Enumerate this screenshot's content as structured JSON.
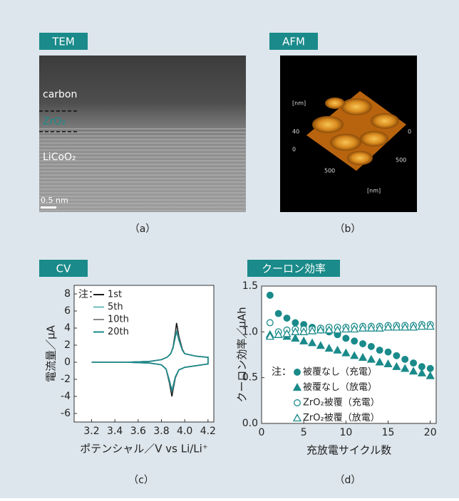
{
  "panels": [
    {
      "tab": "TEM",
      "caption": "（a）",
      "labels": [
        "carbon",
        "ZrO₂",
        "LiCoO₂"
      ],
      "scale_label": "0.5 nm"
    },
    {
      "tab": "AFM",
      "caption": "（b）",
      "axis_labels": [
        "[nm]",
        "40",
        "0",
        "500",
        "0",
        "500",
        "[nm]"
      ]
    }
  ],
  "chart_data": [
    {
      "type": "line",
      "tab": "CV",
      "caption": "（c）",
      "x_label": "ポテンシャル／V vs Li/Li⁺",
      "y_label": "電流量／μA",
      "legend_note": "注：",
      "xlim": [
        3.05,
        4.25
      ],
      "ylim": [
        -7,
        9
      ],
      "xticks": [
        3.2,
        3.4,
        3.6,
        3.8,
        {
          "value": 4,
          "label": "4.0"
        },
        4.2
      ],
      "yticks": [
        -6,
        -4,
        -2,
        0,
        2,
        4,
        6,
        8
      ],
      "series": [
        {
          "name": "1st",
          "color": "#1a1a1a",
          "x": [
            3.2,
            3.5,
            3.7,
            3.8,
            3.85,
            3.88,
            3.9,
            3.92,
            3.93,
            3.95,
            3.98,
            4.0,
            4.1,
            4.18,
            4.2,
            4.2,
            4.1,
            4.0,
            3.95,
            3.92,
            3.9,
            3.89,
            3.87,
            3.84,
            3.8,
            3.7,
            3.5,
            3.2
          ],
          "values": [
            0,
            0,
            0.1,
            0.3,
            0.6,
            1.0,
            1.8,
            3.5,
            4.6,
            3,
            1.5,
            1,
            0.7,
            0.6,
            0.6,
            -0.2,
            -0.4,
            -0.6,
            -0.9,
            -1.8,
            -3.2,
            -4.0,
            -2.5,
            -0.8,
            -0.3,
            -0.1,
            0,
            0
          ]
        },
        {
          "name": "5th",
          "color": "#6cbcbc",
          "x": [
            3.2,
            3.5,
            3.7,
            3.8,
            3.85,
            3.88,
            3.9,
            3.92,
            3.93,
            3.95,
            3.98,
            4.0,
            4.1,
            4.18,
            4.2,
            4.2,
            4.1,
            4.0,
            3.95,
            3.92,
            3.9,
            3.89,
            3.87,
            3.84,
            3.8,
            3.7,
            3.5,
            3.2
          ],
          "values": [
            0,
            0,
            0.1,
            0.3,
            0.6,
            1.0,
            1.7,
            3.1,
            3.8,
            2.7,
            1.4,
            1,
            0.7,
            0.6,
            0.6,
            -0.2,
            -0.4,
            -0.6,
            -0.9,
            -1.7,
            -2.9,
            -3.4,
            -2.3,
            -0.8,
            -0.3,
            -0.1,
            0,
            0
          ]
        },
        {
          "name": "10th",
          "color": "#8a8a8a",
          "x": [
            3.2,
            3.5,
            3.7,
            3.8,
            3.85,
            3.88,
            3.9,
            3.92,
            3.93,
            3.95,
            3.98,
            4.0,
            4.1,
            4.18,
            4.2,
            4.2,
            4.1,
            4.0,
            3.95,
            3.92,
            3.9,
            3.89,
            3.87,
            3.84,
            3.8,
            3.7,
            3.5,
            3.2
          ],
          "values": [
            0,
            0,
            0.1,
            0.3,
            0.6,
            1.0,
            1.7,
            3.0,
            3.7,
            2.6,
            1.4,
            1,
            0.7,
            0.6,
            0.6,
            -0.2,
            -0.4,
            -0.6,
            -0.9,
            -1.7,
            -2.8,
            -3.3,
            -2.2,
            -0.8,
            -0.3,
            -0.1,
            0,
            0
          ]
        },
        {
          "name": "20th",
          "color": "#1a8a8a",
          "x": [
            3.2,
            3.5,
            3.7,
            3.8,
            3.85,
            3.88,
            3.9,
            3.92,
            3.93,
            3.95,
            3.98,
            4.0,
            4.1,
            4.18,
            4.2,
            4.2,
            4.1,
            4.0,
            3.95,
            3.92,
            3.9,
            3.89,
            3.87,
            3.84,
            3.8,
            3.7,
            3.5,
            3.2
          ],
          "values": [
            0,
            0,
            0.1,
            0.3,
            0.6,
            1.0,
            1.7,
            3.0,
            3.6,
            2.6,
            1.4,
            1,
            0.7,
            0.6,
            0.6,
            -0.2,
            -0.4,
            -0.6,
            -0.9,
            -1.7,
            -2.8,
            -3.3,
            -2.2,
            -0.8,
            -0.3,
            -0.1,
            0,
            0
          ]
        }
      ]
    },
    {
      "type": "scatter",
      "tab": "クーロン効率",
      "caption": "（d）",
      "x_label": "充放電サイクル数",
      "y_label": "クーロン効率／μAh",
      "legend_note": "注：",
      "xlim": [
        0,
        20.7
      ],
      "ylim": [
        0,
        1.5
      ],
      "xticks": [
        0,
        5,
        10,
        15,
        20
      ],
      "yticks": [
        {
          "value": 0,
          "label": "0.0"
        },
        0.5,
        {
          "value": 1,
          "label": "1.0"
        },
        1.5
      ],
      "x": [
        1,
        2,
        3,
        4,
        5,
        6,
        7,
        8,
        9,
        10,
        11,
        12,
        13,
        14,
        15,
        16,
        17,
        18,
        19,
        20
      ],
      "series": [
        {
          "name": "被覆なし（充電）",
          "color": "#1a8a8a",
          "marker": "circle",
          "filled": true,
          "values": [
            1.4,
            1.2,
            1.15,
            1.1,
            1.08,
            1.05,
            1.02,
            1.0,
            0.97,
            0.93,
            0.9,
            0.87,
            0.84,
            0.8,
            0.78,
            0.74,
            0.7,
            0.66,
            0.62,
            0.6
          ]
        },
        {
          "name": "被覆なし（放電）",
          "color": "#1a8a8a",
          "marker": "triangle",
          "filled": true,
          "values": [
            0.97,
            0.97,
            0.95,
            0.93,
            0.9,
            0.88,
            0.85,
            0.82,
            0.8,
            0.77,
            0.74,
            0.72,
            0.7,
            0.67,
            0.65,
            0.62,
            0.6,
            0.57,
            0.55,
            0.52
          ]
        },
        {
          "name": "ZrO₂被覆（充電）",
          "color": "#1a8a8a",
          "marker": "circle",
          "filled": false,
          "values": [
            1.1,
            1.0,
            1.02,
            1.03,
            1.03,
            1.03,
            1.04,
            1.05,
            1.05,
            1.05,
            1.06,
            1.06,
            1.06,
            1.06,
            1.07,
            1.07,
            1.07,
            1.07,
            1.08,
            1.08
          ]
        },
        {
          "name": "ZrO₂被覆（放電）",
          "color": "#1a8a8a",
          "marker": "triangle",
          "filled": false,
          "values": [
            0.95,
            0.97,
            0.98,
            1.0,
            1.0,
            1.01,
            1.02,
            1.02,
            1.02,
            1.03,
            1.03,
            1.04,
            1.04,
            1.04,
            1.05,
            1.05,
            1.05,
            1.05,
            1.06,
            1.06
          ]
        }
      ]
    }
  ]
}
